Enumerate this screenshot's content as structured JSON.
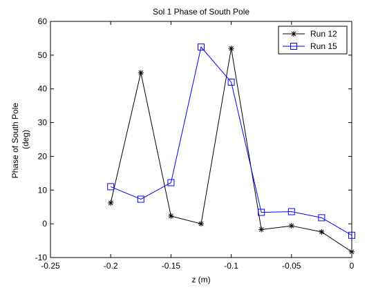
{
  "chart_data": {
    "type": "line",
    "title": "Sol 1 Phase of South Pole",
    "xlabel": "z (m)",
    "ylabel_lines": [
      "Phase of South Pole",
      "(deg)"
    ],
    "xlim": [
      -0.25,
      0
    ],
    "ylim": [
      -10,
      60
    ],
    "xticks": [
      -0.25,
      -0.2,
      -0.15,
      -0.1,
      -0.05,
      0
    ],
    "xtick_labels": [
      "-0.25",
      "-0.2",
      "-0.15",
      "-0.1",
      "-0.05",
      "0"
    ],
    "yticks": [
      -10,
      0,
      10,
      20,
      30,
      40,
      50,
      60
    ],
    "ytick_labels": [
      "-10",
      "0",
      "10",
      "20",
      "30",
      "40",
      "50",
      "60"
    ],
    "grid": false,
    "legend_position": "top-right",
    "series": [
      {
        "name": "Run 12",
        "color": "#000000",
        "marker": "asterisk",
        "x": [
          -0.2,
          -0.175,
          -0.15,
          -0.125,
          -0.1,
          -0.075,
          -0.05,
          -0.025,
          0
        ],
        "y": [
          6.2,
          44.8,
          2.3,
          0.0,
          52.0,
          -1.7,
          -0.6,
          -2.4,
          -8.3
        ]
      },
      {
        "name": "Run 15",
        "color": "#0000ff",
        "marker": "square",
        "x": [
          -0.2,
          -0.175,
          -0.15,
          -0.125,
          -0.1,
          -0.075,
          -0.05,
          -0.025,
          0
        ],
        "y": [
          11.0,
          7.3,
          12.2,
          52.4,
          42.0,
          3.4,
          3.6,
          1.8,
          -3.4
        ]
      }
    ]
  }
}
